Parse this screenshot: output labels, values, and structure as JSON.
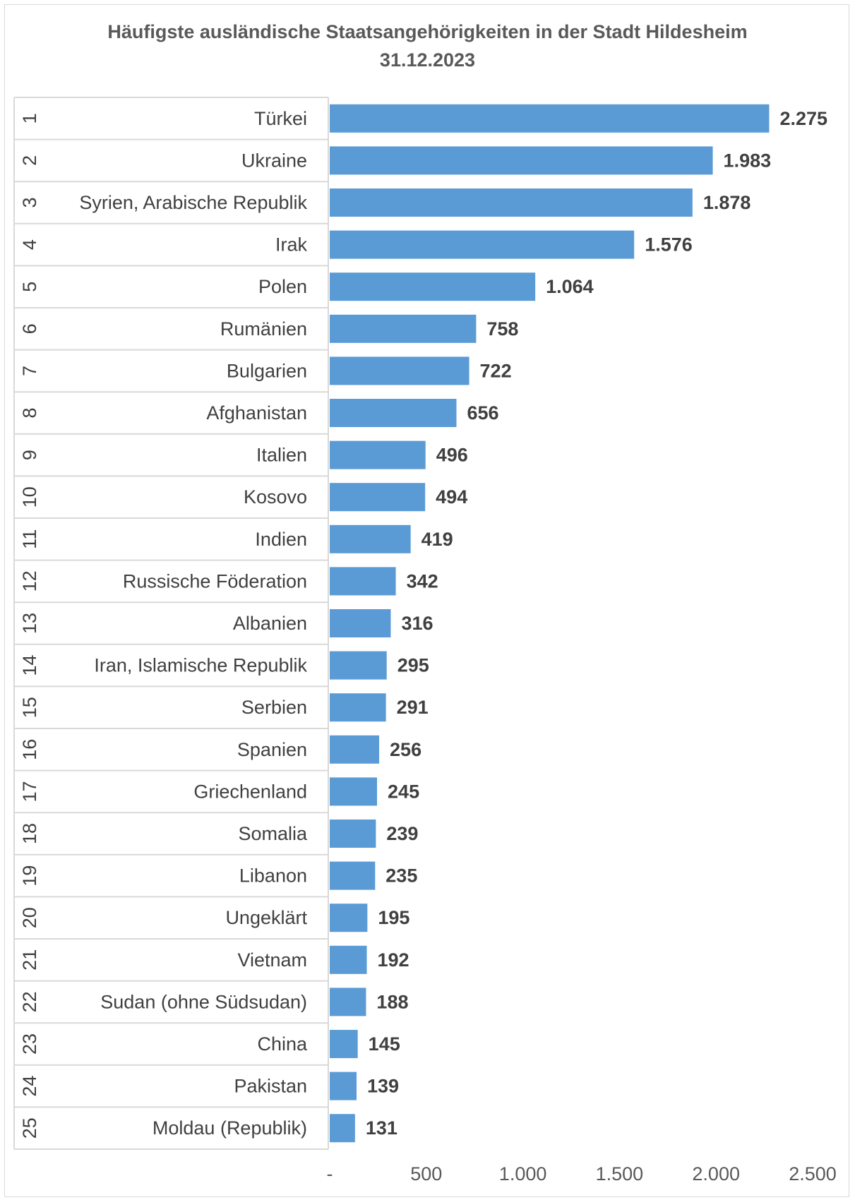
{
  "title": {
    "line1": "Häufigste ausländische Staatsangehörigkeiten in der Stadt Hildesheim",
    "line2": "31.12.2023"
  },
  "chart_data": {
    "type": "bar",
    "orientation": "horizontal",
    "title": "Häufigste ausländische Staatsangehörigkeiten in der Stadt Hildesheim 31.12.2023",
    "ranks": [
      "1",
      "2",
      "3",
      "4",
      "5",
      "6",
      "7",
      "8",
      "9",
      "10",
      "11",
      "12",
      "13",
      "14",
      "15",
      "16",
      "17",
      "18",
      "19",
      "20",
      "21",
      "22",
      "23",
      "24",
      "25"
    ],
    "categories": [
      "Türkei",
      "Ukraine",
      "Syrien, Arabische Republik",
      "Irak",
      "Polen",
      "Rumänien",
      "Bulgarien",
      "Afghanistan",
      "Italien",
      "Kosovo",
      "Indien",
      "Russische Föderation",
      "Albanien",
      "Iran, Islamische Republik",
      "Serbien",
      "Spanien",
      "Griechenland",
      "Somalia",
      "Libanon",
      "Ungeklärt",
      "Vietnam",
      "Sudan (ohne Südsudan)",
      "China",
      "Pakistan",
      "Moldau (Republik)"
    ],
    "values": [
      2275,
      1983,
      1878,
      1576,
      1064,
      758,
      722,
      656,
      496,
      494,
      419,
      342,
      316,
      295,
      291,
      256,
      245,
      239,
      235,
      195,
      192,
      188,
      145,
      139,
      131
    ],
    "value_labels": [
      "2.275",
      "1.983",
      "1.878",
      "1.576",
      "1.064",
      "758",
      "722",
      "656",
      "496",
      "494",
      "419",
      "342",
      "316",
      "295",
      "291",
      "256",
      "245",
      "239",
      "235",
      "195",
      "192",
      "188",
      "145",
      "139",
      "131"
    ],
    "xlim": [
      0,
      2500
    ],
    "x_ticks": [
      0,
      500,
      1000,
      1500,
      2000,
      2500
    ],
    "x_tick_labels": [
      "-",
      "500",
      "1.000",
      "1.500",
      "2.000",
      "2.500"
    ],
    "bar_color": "#5b9bd5",
    "grid": false,
    "legend": "none"
  }
}
